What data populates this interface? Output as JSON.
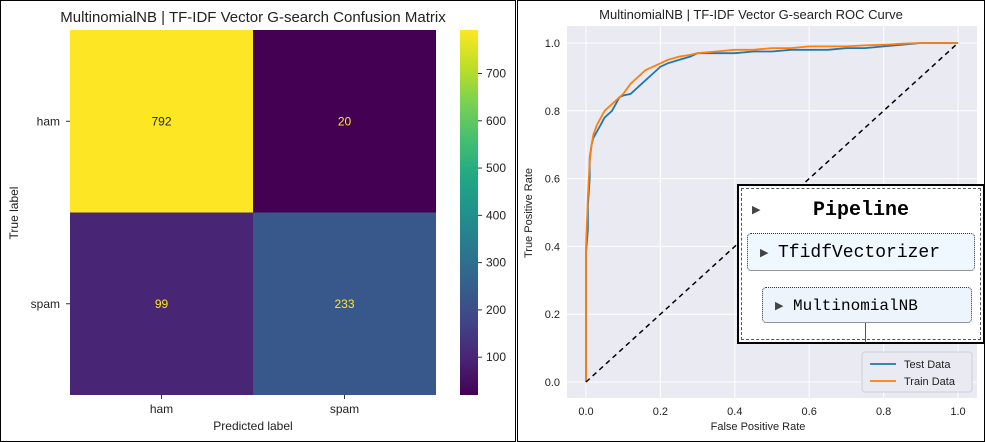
{
  "chart_data": [
    {
      "type": "heatmap",
      "title": "MultinomialNB | TF-IDF Vector G-search Confusion Matrix",
      "xlabel": "Predicted label",
      "ylabel": "True label",
      "x_ticks": [
        "ham",
        "spam"
      ],
      "y_ticks": [
        "ham",
        "spam"
      ],
      "values": [
        [
          792,
          20
        ],
        [
          99,
          233
        ]
      ],
      "colormap": "viridis",
      "colorbar": {
        "min": 20,
        "max": 792,
        "ticks": [
          100,
          200,
          300,
          400,
          500,
          600,
          700
        ]
      }
    },
    {
      "type": "line",
      "title": "MultinomialNB | TF-IDF Vector G-search ROC Curve",
      "xlabel": "False Positive Rate",
      "ylabel": "True Positive Rate",
      "xlim": [
        0,
        1
      ],
      "ylim": [
        0,
        1
      ],
      "x_ticks": [
        0.0,
        0.2,
        0.4,
        0.6,
        0.8,
        1.0
      ],
      "y_ticks": [
        0.0,
        0.2,
        0.4,
        0.6,
        0.8,
        1.0
      ],
      "grid": true,
      "legend_position": "bottom-right",
      "series": [
        {
          "name": "Test Data",
          "color": "#1f77b4",
          "x": [
            0,
            0,
            0.005,
            0.005,
            0.01,
            0.01,
            0.015,
            0.02,
            0.03,
            0.04,
            0.05,
            0.06,
            0.07,
            0.08,
            0.09,
            0.1,
            0.12,
            0.14,
            0.16,
            0.18,
            0.2,
            0.22,
            0.25,
            0.28,
            0.3,
            0.35,
            0.4,
            0.45,
            0.5,
            0.55,
            0.6,
            0.65,
            0.7,
            0.75,
            0.8,
            0.85,
            0.9,
            1.0
          ],
          "y": [
            0,
            0.38,
            0.45,
            0.52,
            0.6,
            0.66,
            0.7,
            0.72,
            0.74,
            0.76,
            0.78,
            0.79,
            0.8,
            0.82,
            0.84,
            0.845,
            0.85,
            0.87,
            0.89,
            0.91,
            0.93,
            0.94,
            0.95,
            0.96,
            0.97,
            0.97,
            0.97,
            0.975,
            0.975,
            0.98,
            0.98,
            0.98,
            0.985,
            0.985,
            0.99,
            0.995,
            1.0,
            1.0
          ]
        },
        {
          "name": "Train Data",
          "color": "#ff7f0e",
          "x": [
            0,
            0,
            0.005,
            0.01,
            0.015,
            0.02,
            0.03,
            0.04,
            0.05,
            0.06,
            0.08,
            0.1,
            0.12,
            0.14,
            0.16,
            0.18,
            0.2,
            0.22,
            0.25,
            0.28,
            0.3,
            0.35,
            0.4,
            0.45,
            0.5,
            0.55,
            0.6,
            0.65,
            0.7,
            0.75,
            0.8,
            0.85,
            0.9,
            1.0
          ],
          "y": [
            0,
            0.4,
            0.55,
            0.65,
            0.7,
            0.73,
            0.76,
            0.78,
            0.8,
            0.81,
            0.83,
            0.85,
            0.88,
            0.9,
            0.92,
            0.93,
            0.94,
            0.95,
            0.96,
            0.965,
            0.97,
            0.975,
            0.98,
            0.98,
            0.985,
            0.985,
            0.99,
            0.99,
            0.99,
            0.993,
            0.995,
            0.998,
            1.0,
            1.0
          ]
        },
        {
          "name": "",
          "color": "#000000",
          "style": "dashed",
          "x": [
            0,
            1
          ],
          "y": [
            0,
            1
          ]
        }
      ]
    }
  ],
  "pipeline": {
    "title": "Pipeline",
    "steps": [
      "TfidfVectorizer",
      "MultinomialNB"
    ]
  }
}
